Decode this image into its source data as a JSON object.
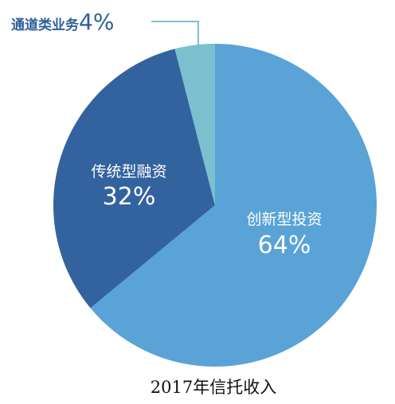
{
  "chart_data": {
    "type": "pie",
    "title": "2017年信托收入",
    "slices": [
      {
        "label": "创新型投资",
        "value": 64,
        "display": "64%",
        "color": "#5aa3d6"
      },
      {
        "label": "传统型融资",
        "value": 32,
        "display": "32%",
        "color": "#33639e"
      },
      {
        "label": "通道类业务",
        "value": 4,
        "display": "4%",
        "color": "#7cc0d0"
      }
    ]
  }
}
